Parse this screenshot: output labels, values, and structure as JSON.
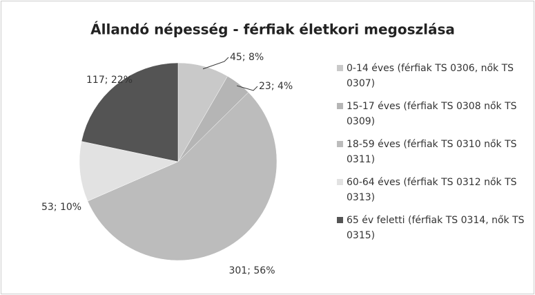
{
  "chart_data": {
    "type": "pie",
    "title": "Állandó népesség - férfiak életkori megoszlása",
    "categories": [
      "0-14 éves (férfiak TS 0306, nők TS 0307)",
      "15-17 éves (férfiak TS 0308 nők TS 0309)",
      "18-59 éves (férfiak TS 0310 nők TS 0311)",
      "60-64 éves (férfiak TS 0312 nők TS 0313)",
      "65 év feletti (férfiak TS 0314, nők TS 0315)"
    ],
    "values": [
      45,
      23,
      301,
      53,
      117
    ],
    "value_labels": [
      "45; 8%",
      "23; 4%",
      "301; 56%",
      "53; 10%",
      "117; 22%"
    ],
    "colors": [
      "#c9c9c9",
      "#b5b5b5",
      "#bcbcbc",
      "#e2e2e2",
      "#545454"
    ],
    "legend": "right"
  }
}
